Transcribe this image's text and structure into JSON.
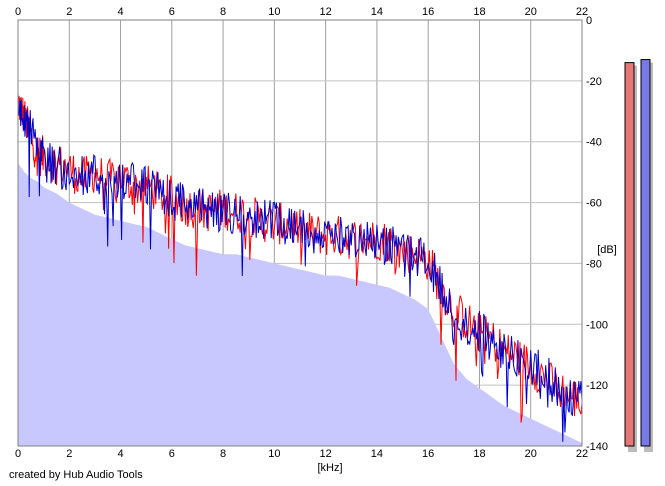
{
  "chart_data": {
    "type": "area",
    "xlabel": "[kHz]",
    "ylabel": "[dB]",
    "xlim": [
      0,
      22
    ],
    "ylim": [
      -140,
      0
    ],
    "x_ticks": [
      0,
      2,
      4,
      6,
      8,
      10,
      12,
      14,
      16,
      18,
      20,
      22
    ],
    "y_ticks": [
      0,
      -20,
      -40,
      -60,
      -80,
      -100,
      -120,
      -140
    ],
    "x_tick_labels": [
      "0",
      "2",
      "4",
      "6",
      "8",
      "10",
      "12",
      "14",
      "16",
      "18",
      "20",
      "22"
    ],
    "y_tick_labels": [
      "0",
      "-20",
      "-40",
      "-60",
      "-80",
      "-100",
      "-120",
      "-140"
    ],
    "grid": true,
    "area_color": "#c8c8ff",
    "series": [
      {
        "color": "#ff0000",
        "x": [
          0,
          0.25,
          0.5,
          0.75,
          1,
          1.5,
          2,
          2.5,
          3,
          3.5,
          4,
          4.5,
          5,
          5.5,
          6,
          6.5,
          7,
          7.5,
          8,
          8.5,
          9,
          9.5,
          10,
          10.5,
          11,
          11.5,
          12,
          12.5,
          13,
          13.5,
          14,
          14.5,
          15,
          15.5,
          16,
          16.5,
          17,
          17.5,
          18,
          18.5,
          19,
          19.5,
          20,
          20.5,
          21,
          21.5,
          22
        ],
        "y": [
          -27,
          -32,
          -38,
          -44,
          -45,
          -47,
          -49,
          -52,
          -50,
          -53,
          -51,
          -55,
          -54,
          -57,
          -58,
          -61,
          -62,
          -63,
          -62,
          -63,
          -64,
          -66,
          -67,
          -67,
          -69,
          -70,
          -71,
          -71,
          -72,
          -72,
          -72,
          -73,
          -76,
          -77,
          -79,
          -88,
          -95,
          -99,
          -103,
          -105,
          -109,
          -111,
          -114,
          -117,
          -121,
          -123,
          -126
        ]
      },
      {
        "color": "#0000cc",
        "x": [
          0,
          0.25,
          0.5,
          0.75,
          1,
          1.5,
          2,
          2.5,
          3,
          3.5,
          4,
          4.5,
          5,
          5.5,
          6,
          6.5,
          7,
          7.5,
          8,
          8.5,
          9,
          9.5,
          10,
          10.5,
          11,
          11.5,
          12,
          12.5,
          13,
          13.5,
          14,
          14.5,
          15,
          15.5,
          16,
          16.5,
          17,
          17.5,
          18,
          18.5,
          19,
          19.5,
          20,
          20.5,
          21,
          21.5,
          22
        ],
        "y": [
          -30,
          -31,
          -36,
          -42,
          -46,
          -48,
          -50,
          -51,
          -51,
          -52,
          -52,
          -54,
          -55,
          -57,
          -59,
          -60,
          -62,
          -62,
          -63,
          -64,
          -65,
          -65,
          -66,
          -68,
          -68,
          -69,
          -70,
          -71,
          -71,
          -71,
          -73,
          -74,
          -75,
          -77,
          -80,
          -87,
          -96,
          -100,
          -102,
          -106,
          -109,
          -112,
          -114,
          -116,
          -120,
          -123,
          -125
        ]
      }
    ],
    "area_values": [
      -47,
      -50,
      -52,
      -53,
      -55,
      -57,
      -60,
      -62,
      -64,
      -65,
      -66,
      -67,
      -68,
      -70,
      -72,
      -74,
      -75,
      -76,
      -77,
      -77,
      -78,
      -79,
      -80,
      -81,
      -82,
      -83,
      -84,
      -84,
      -85,
      -86,
      -87,
      -88,
      -90,
      -92,
      -95,
      -104,
      -113,
      -118,
      -121,
      -124,
      -127,
      -129,
      -131,
      -133,
      -135,
      -137,
      -139
    ],
    "meters": [
      {
        "color": "#e87878",
        "level_db": -14
      },
      {
        "color": "#7878e8",
        "level_db": -13
      }
    ]
  },
  "footer": {
    "credit": "created by Hub Audio Tools"
  }
}
